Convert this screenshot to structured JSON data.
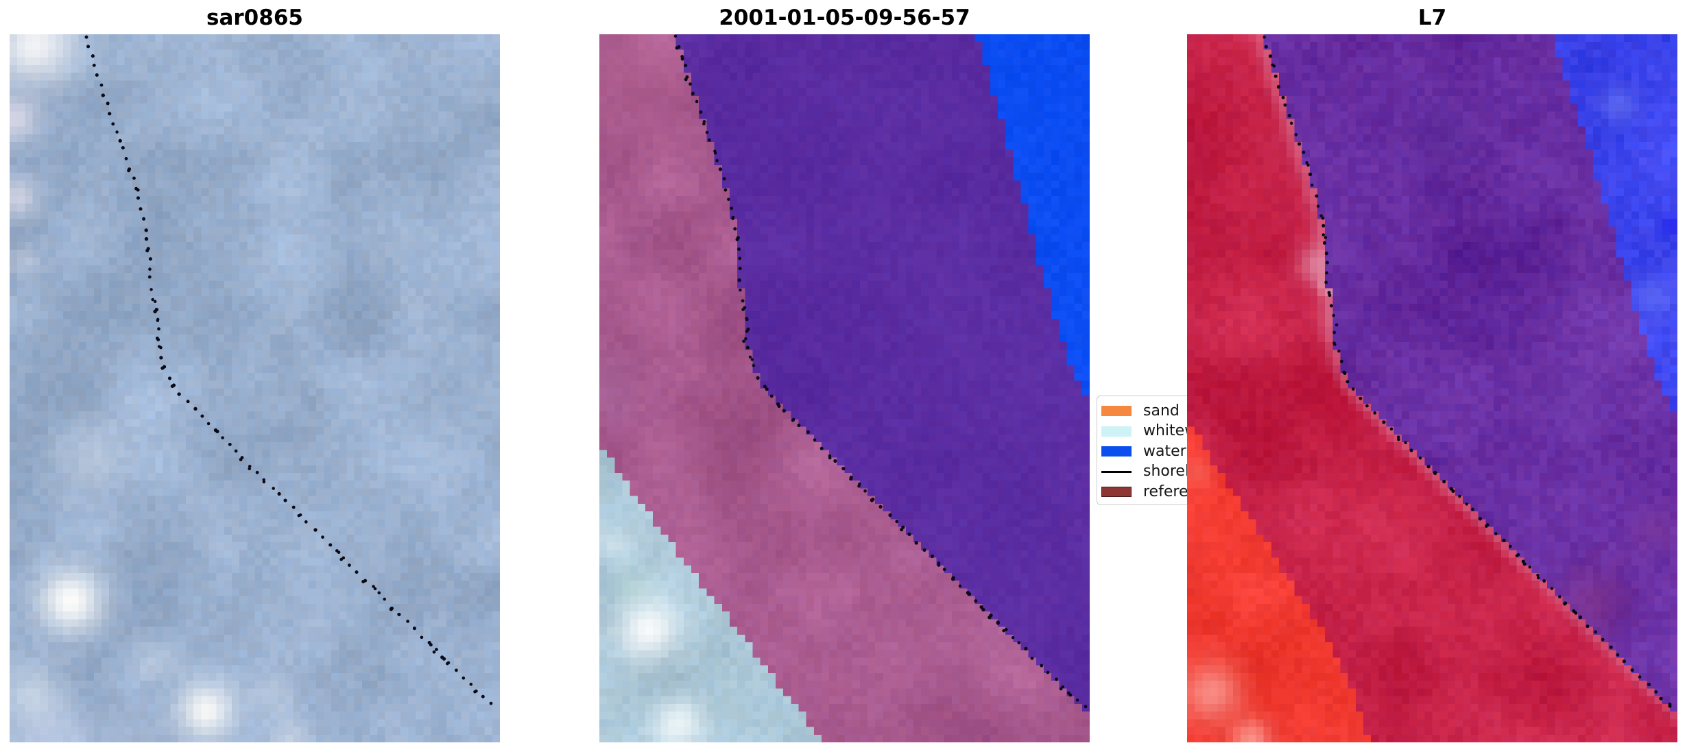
{
  "figure": {
    "panels": [
      {
        "id": "sar",
        "title": "sar0865"
      },
      {
        "id": "cls",
        "title": "2001-01-05-09-56-57"
      },
      {
        "id": "l7",
        "title": "L7"
      }
    ],
    "legend": {
      "items": [
        {
          "label": "sand",
          "type": "patch",
          "color": "#f6873e",
          "edge": "#f6873e"
        },
        {
          "label": "whitewater",
          "type": "patch",
          "color": "#cdf3f7",
          "edge": "#cdf3f7"
        },
        {
          "label": "water",
          "type": "patch",
          "color": "#0a4fee",
          "edge": "#0a4fee"
        },
        {
          "label": "shoreline",
          "type": "line",
          "color": "#000000",
          "edge": "#000000"
        },
        {
          "label": "reference",
          "type": "patch",
          "color": "#8d3634",
          "edge": "#451b19"
        }
      ]
    }
  },
  "chart_data": {
    "type": "image-panels",
    "title_row": [
      "sar0865",
      "2001-01-05-09-56-57",
      "L7"
    ],
    "description": "Three co-registered coastal image tiles with a dotted detected shoreline overlay; middle panel is a sand/whitewater/water classification, right panel is a Landsat-7 false-color tile.",
    "legend_entries": [
      "sand",
      "whitewater",
      "water",
      "shoreline",
      "reference"
    ],
    "render": {
      "grid": {
        "cols": 64,
        "rows": 92
      },
      "shore": [
        [
          0.0,
          0.155
        ],
        [
          0.04,
          0.172
        ],
        [
          0.08,
          0.19
        ],
        [
          0.12,
          0.21
        ],
        [
          0.16,
          0.231
        ],
        [
          0.2,
          0.251
        ],
        [
          0.24,
          0.267
        ],
        [
          0.28,
          0.279
        ],
        [
          0.32,
          0.287
        ],
        [
          0.35,
          0.284
        ],
        [
          0.38,
          0.296
        ],
        [
          0.41,
          0.305
        ],
        [
          0.43,
          0.299
        ],
        [
          0.46,
          0.312
        ],
        [
          0.49,
          0.327
        ],
        [
          0.52,
          0.362
        ],
        [
          0.56,
          0.42
        ],
        [
          0.6,
          0.478
        ],
        [
          0.64,
          0.536
        ],
        [
          0.68,
          0.594
        ],
        [
          0.72,
          0.652
        ],
        [
          0.76,
          0.71
        ],
        [
          0.8,
          0.768
        ],
        [
          0.84,
          0.826
        ],
        [
          0.88,
          0.884
        ],
        [
          0.92,
          0.942
        ],
        [
          0.95,
          0.99
        ],
        [
          1.0,
          1.06
        ]
      ],
      "dots": {
        "spacing": 12.5,
        "spacing_jitter": 4,
        "pos_jitter": 3.4,
        "radius": 2.2,
        "pair_chance": 0.28,
        "color": "#0a0a16"
      },
      "panels": [
        {
          "id": "sar",
          "seed": 101,
          "dot_seed": 11,
          "regions": {
            "land": {
              "base": [
                155,
                177,
                207
              ],
              "amp": 13,
              "jitter": 6,
              "lights": [
                [
                  0.05,
                  0.015,
                  0.1,
                  0.95,
                  [
                    246,
                    246,
                    248
                  ]
                ],
                [
                  0.01,
                  0.12,
                  0.06,
                  0.75,
                  [
                    232,
                    226,
                    238
                  ]
                ],
                [
                  0.015,
                  0.23,
                  0.055,
                  0.65,
                  [
                    236,
                    230,
                    240
                  ]
                ],
                [
                  0.03,
                  0.32,
                  0.04,
                  0.45,
                  [
                    225,
                    225,
                    235
                  ]
                ],
                [
                  0.16,
                  0.6,
                  0.09,
                  0.35,
                  [
                    225,
                    232,
                    240
                  ]
                ],
                [
                  0.125,
                  0.8,
                  0.08,
                  1.0,
                  [
                    252,
                    252,
                    250
                  ]
                ],
                [
                  0.4,
                  0.955,
                  0.07,
                  0.95,
                  [
                    250,
                    250,
                    248
                  ]
                ],
                [
                  0.05,
                  0.935,
                  0.075,
                  0.55,
                  [
                    228,
                    236,
                    242
                  ]
                ],
                [
                  0.3,
                  0.885,
                  0.05,
                  0.35,
                  [
                    222,
                    230,
                    240
                  ]
                ],
                [
                  0.54,
                  0.93,
                  0.055,
                  0.35,
                  [
                    220,
                    228,
                    238
                  ]
                ],
                [
                  0.08,
                  0.99,
                  0.1,
                  0.5,
                  [
                    198,
                    208,
                    232
                  ]
                ],
                [
                  0.25,
                  0.995,
                  0.08,
                  0.35,
                  [
                    192,
                    202,
                    228
                  ]
                ],
                [
                  0.57,
                  0.995,
                  0.05,
                  0.45,
                  [
                    230,
                    235,
                    240
                  ]
                ]
              ]
            }
          }
        },
        {
          "id": "cls",
          "seed": 202,
          "dot_seed": 22,
          "blue": {
            "maxy": 0.525,
            "pts": [
              [
                0,
                0.77
              ],
              [
                0.07,
                0.8
              ],
              [
                0.14,
                0.828
              ],
              [
                0.21,
                0.855
              ],
              [
                0.28,
                0.88
              ],
              [
                0.34,
                0.905
              ],
              [
                0.4,
                0.928
              ],
              [
                0.45,
                0.95
              ],
              [
                0.49,
                0.972
              ],
              [
                0.525,
                1.01
              ]
            ]
          },
          "ww": {
            "miny": 0.58,
            "pts": [
              [
                0.58,
                0.0
              ],
              [
                0.64,
                0.062
              ],
              [
                0.7,
                0.125
              ],
              [
                0.76,
                0.19
              ],
              [
                0.82,
                0.26
              ],
              [
                0.88,
                0.325
              ],
              [
                0.94,
                0.39
              ],
              [
                1.0,
                0.458
              ]
            ]
          },
          "water": true,
          "regions": {
            "land": {
              "base": [
                167,
                89,
                141
              ],
              "amp": 12,
              "jitter": 5,
              "lights": [
                [
                  0.06,
                  0.03,
                  0.22,
                  0.35,
                  [
                    196,
                    112,
                    158
                  ]
                ],
                [
                  0.02,
                  0.5,
                  0.1,
                  0.25,
                  [
                    142,
                    96,
                    152
                  ]
                ],
                [
                  0.25,
                  0.62,
                  0.14,
                  0.2,
                  [
                    152,
                    82,
                    128
                  ]
                ]
              ]
            },
            "water": {
              "base": [
                90,
                44,
                161
              ],
              "amp": 4,
              "jitter": 4,
              "lights": []
            },
            "blue": {
              "base": [
                12,
                77,
                242
              ],
              "amp": 3,
              "jitter": 5,
              "lights": []
            },
            "ww": {
              "base": [
                170,
                198,
                214
              ],
              "amp": 12,
              "jitter": 6,
              "lights": [
                [
                  0.1,
                  0.84,
                  0.075,
                  0.95,
                  [
                    250,
                    252,
                    252
                  ]
                ],
                [
                  0.16,
                  0.975,
                  0.06,
                  0.85,
                  [
                    244,
                    250,
                    250
                  ]
                ],
                [
                  0.03,
                  0.72,
                  0.045,
                  0.5,
                  [
                    225,
                    238,
                    242
                  ]
                ],
                [
                  0.07,
                  0.78,
                  0.05,
                  0.35,
                  [
                    180,
                    215,
                    205
                  ]
                ]
              ]
            }
          }
        },
        {
          "id": "l7",
          "seed": 303,
          "dot_seed": 33,
          "blue": {
            "maxy": 0.55,
            "pts": [
              [
                0,
                0.745
              ],
              [
                0.08,
                0.782
              ],
              [
                0.16,
                0.818
              ],
              [
                0.24,
                0.852
              ],
              [
                0.32,
                0.886
              ],
              [
                0.4,
                0.92
              ],
              [
                0.47,
                0.952
              ],
              [
                0.52,
                0.98
              ],
              [
                0.55,
                1.01
              ]
            ]
          },
          "ww": {
            "miny": 0.545,
            "pts": [
              [
                0.545,
                0.0
              ],
              [
                0.61,
                0.06
              ],
              [
                0.68,
                0.125
              ],
              [
                0.75,
                0.19
              ],
              [
                0.82,
                0.255
              ],
              [
                0.89,
                0.315
              ],
              [
                0.95,
                0.35
              ],
              [
                1.0,
                0.375
              ]
            ]
          },
          "water": true,
          "band": {
            "w": 0.035,
            "s": 0.55,
            "color": [
              222,
              135,
              165
            ]
          },
          "regions": {
            "land": {
              "base": [
                197,
                33,
                71
              ],
              "amp": 11,
              "jitter": 6,
              "lights": [
                [
                  0.27,
                  0.325,
                  0.05,
                  0.8,
                  [
                    225,
                    150,
                    175
                  ]
                ],
                [
                  0.305,
                  0.4,
                  0.045,
                  0.6,
                  [
                    215,
                    120,
                    150
                  ]
                ],
                [
                  0.29,
                  0.355,
                  0.025,
                  0.9,
                  [
                    235,
                    190,
                    205
                  ]
                ],
                [
                  0.3,
                  0.52,
                  0.09,
                  0.45,
                  [
                    180,
                    10,
                    48
                  ]
                ],
                [
                  0.2,
                  0.16,
                  0.08,
                  0.3,
                  [
                    210,
                    60,
                    95
                  ]
                ]
              ]
            },
            "water": {
              "base": [
                102,
                44,
                160
              ],
              "amp": 12,
              "jitter": 7,
              "lights": [
                [
                  0.83,
                  0.8,
                  0.09,
                  0.5,
                  [
                    150,
                    64,
                    138
                  ]
                ],
                [
                  0.78,
                  0.52,
                  0.08,
                  0.35,
                  [
                    116,
                    70,
                    180
                  ]
                ],
                [
                  0.52,
                  0.14,
                  0.1,
                  0.35,
                  [
                    74,
                    34,
                    138
                  ]
                ],
                [
                  0.95,
                  0.7,
                  0.06,
                  0.4,
                  [
                    130,
                    60,
                    150
                  ]
                ]
              ]
            },
            "blue": {
              "base": [
                58,
                66,
                233
              ],
              "amp": 11,
              "jitter": 8,
              "lights": [
                [
                  0.88,
                  0.1,
                  0.05,
                  0.5,
                  [
                    118,
                    132,
                    244
                  ]
                ],
                [
                  0.95,
                  0.37,
                  0.05,
                  0.5,
                  [
                    110,
                    124,
                    242
                  ]
                ],
                [
                  0.99,
                  0.55,
                  0.04,
                  0.6,
                  [
                    28,
                    24,
                    240
                  ]
                ],
                [
                  0.99,
                  0.27,
                  0.03,
                  0.5,
                  [
                    24,
                    20,
                    242
                  ]
                ]
              ]
            },
            "ww": {
              "base": [
                240,
                57,
                48
              ],
              "amp": 10,
              "jitter": 6,
              "lights": [
                [
                  0.05,
                  0.93,
                  0.075,
                  0.8,
                  [
                    250,
                    160,
                    152
                  ]
                ],
                [
                  0.13,
                  0.995,
                  0.05,
                  0.7,
                  [
                    252,
                    180,
                    172
                  ]
                ],
                [
                  0.02,
                  0.62,
                  0.035,
                  0.5,
                  [
                    248,
                    120,
                    110
                  ]
                ]
              ]
            }
          }
        }
      ]
    }
  }
}
